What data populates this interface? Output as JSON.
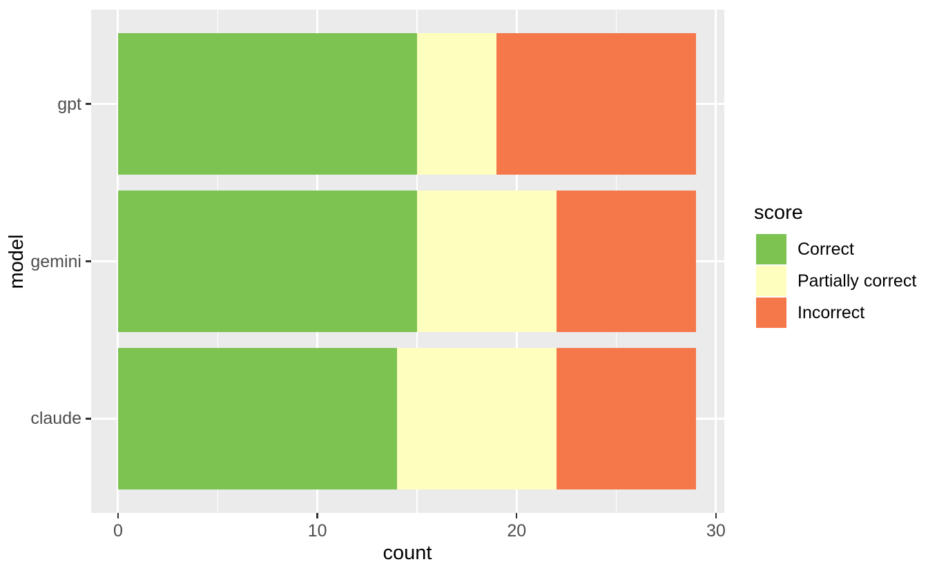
{
  "chart_data": {
    "type": "bar",
    "orientation": "horizontal",
    "stacked": true,
    "title": "",
    "xlabel": "count",
    "ylabel": "model",
    "categories": [
      "gpt",
      "gemini",
      "claude"
    ],
    "series": [
      {
        "name": "Correct",
        "color": "#7cc352",
        "values": [
          15,
          15,
          14
        ]
      },
      {
        "name": "Partially correct",
        "color": "#feffbe",
        "values": [
          4,
          7,
          8
        ]
      },
      {
        "name": "Incorrect",
        "color": "#f5784b",
        "values": [
          10,
          7,
          7
        ]
      }
    ],
    "totals": [
      29,
      29,
      29
    ],
    "x_axis": {
      "ticks": [
        0,
        10,
        20,
        30
      ],
      "minor_ticks": [
        5,
        15,
        25
      ],
      "range": [
        -1.35,
        30.42
      ]
    },
    "legend": {
      "title": "score",
      "position": "right"
    },
    "style": {
      "panel_bg": "#ebebeb",
      "grid_color": "#ffffff",
      "tick_mark_color": "#333333",
      "tick_label_color": "#4d4d4d",
      "axis_title_color": "#000000",
      "bar_width_fraction": 0.9,
      "category_expand": 0.6
    }
  }
}
